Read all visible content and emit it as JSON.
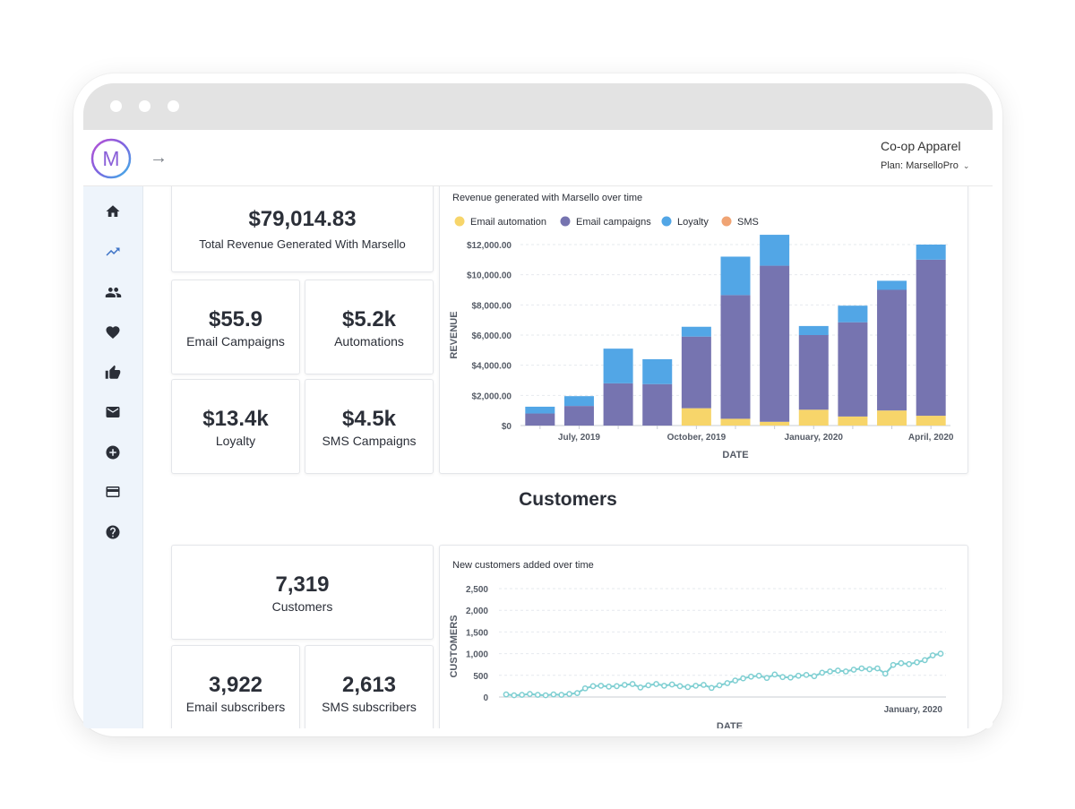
{
  "app": {
    "org_name": "Co-op Apparel",
    "plan_label": "Plan: MarselloPro",
    "logo_letter": "M"
  },
  "sidebar": {
    "items": [
      {
        "icon": "home-icon"
      },
      {
        "icon": "trending-up-icon"
      },
      {
        "icon": "people-icon"
      },
      {
        "icon": "heart-icon"
      },
      {
        "icon": "thumbs-up-icon"
      },
      {
        "icon": "mail-icon"
      },
      {
        "icon": "plus-circle-icon"
      },
      {
        "icon": "credit-card-icon"
      },
      {
        "icon": "help-icon"
      }
    ],
    "active_index": 1
  },
  "revenue": {
    "total": {
      "value": "$79,014.83",
      "label": "Total Revenue Generated With Marsello"
    },
    "email_campaigns": {
      "value": "$55.9",
      "label": "Email Campaigns"
    },
    "automations": {
      "value": "$5.2k",
      "label": "Automations"
    },
    "loyalty": {
      "value": "$13.4k",
      "label": "Loyalty"
    },
    "sms_campaigns": {
      "value": "$4.5k",
      "label": "SMS Campaigns"
    }
  },
  "customers_section": {
    "title": "Customers",
    "customers": {
      "value": "7,319",
      "label": "Customers"
    },
    "email_subscribers": {
      "value": "3,922",
      "label": "Email subscribers"
    },
    "sms_subscribers": {
      "value": "2,613",
      "label": "SMS subscribers"
    }
  },
  "chart_data": [
    {
      "type": "bar",
      "stacked": true,
      "title": "Revenue generated with Marsello over time",
      "xlabel": "DATE",
      "ylabel": "REVENUE",
      "ylim": [
        0,
        12000
      ],
      "yticks": [
        0,
        2000,
        4000,
        6000,
        8000,
        10000,
        12000
      ],
      "ytick_labels": [
        "$0",
        "$2,000.00",
        "$4,000.00",
        "$6,000.00",
        "$8,000.00",
        "$10,000.00",
        "$12,000.00"
      ],
      "xtick_labels": [
        {
          "index": 1,
          "label": "July, 2019"
        },
        {
          "index": 4,
          "label": "October, 2019"
        },
        {
          "index": 7,
          "label": "January, 2020"
        },
        {
          "index": 10,
          "label": "April, 2020"
        }
      ],
      "categories": [
        "",
        "",
        "",
        "",
        "",
        "",
        "",
        "",
        "",
        "",
        ""
      ],
      "legend": "top-left",
      "series": [
        {
          "name": "Email automation",
          "color": "#f7d56a",
          "values": [
            0,
            0,
            0,
            0,
            1150,
            450,
            250,
            1050,
            600,
            1000,
            650
          ]
        },
        {
          "name": "Email campaigns",
          "color": "#7674b0",
          "values": [
            800,
            1300,
            2800,
            2750,
            4750,
            8200,
            10350,
            4950,
            6250,
            8000,
            10350
          ]
        },
        {
          "name": "Loyalty",
          "color": "#52a6e6",
          "values": [
            450,
            650,
            2300,
            1650,
            650,
            2550,
            2050,
            600,
            1100,
            600,
            1000
          ]
        },
        {
          "name": "SMS",
          "color": "#f0a474",
          "values": [
            0,
            0,
            0,
            0,
            0,
            0,
            0,
            0,
            0,
            0,
            0
          ]
        }
      ]
    },
    {
      "type": "line",
      "title": "New customers added over time",
      "xlabel": "DATE",
      "ylabel": "CUSTOMERS",
      "ylim": [
        0,
        2500
      ],
      "yticks": [
        0,
        500,
        1000,
        1500,
        2000,
        2500
      ],
      "ytick_labels": [
        "0",
        "500",
        "1,000",
        "1,500",
        "2,000",
        "2,500"
      ],
      "xtick_labels": [
        {
          "index": 48,
          "label": "January, 2020"
        }
      ],
      "series": [
        {
          "name": "",
          "color": "#7fcfd2",
          "values": [
            60,
            40,
            50,
            70,
            50,
            40,
            60,
            50,
            70,
            90,
            200,
            250,
            260,
            240,
            250,
            280,
            300,
            220,
            270,
            300,
            260,
            290,
            250,
            230,
            260,
            280,
            210,
            270,
            320,
            380,
            430,
            470,
            490,
            440,
            520,
            460,
            450,
            490,
            510,
            480,
            560,
            590,
            610,
            590,
            630,
            660,
            640,
            660,
            540,
            740,
            780,
            760,
            800,
            850,
            960,
            1000
          ]
        }
      ]
    }
  ]
}
